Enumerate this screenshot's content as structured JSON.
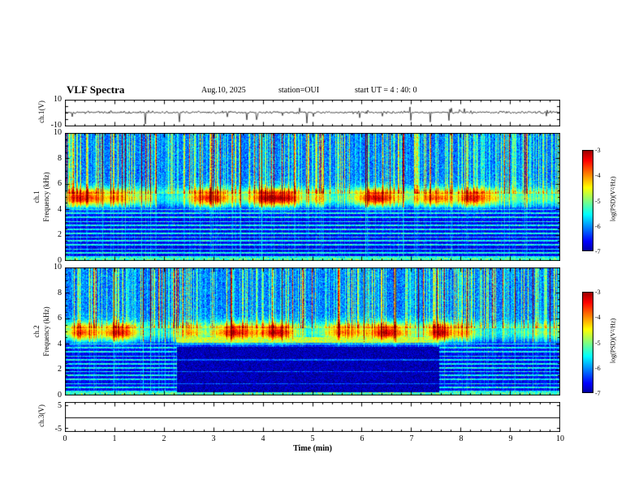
{
  "title": "VLF Spectra",
  "header": {
    "date": "Aug.10, 2025",
    "station": "station=OUI",
    "start_ut": "start UT =  4 : 40: 0"
  },
  "xaxis": {
    "label": "Time (min)",
    "min": 0,
    "max": 10,
    "tick_labels": [
      "0",
      "1",
      "2",
      "3",
      "4",
      "5",
      "6",
      "7",
      "8",
      "9",
      "10"
    ]
  },
  "colorbar": {
    "label": "log(PSD)(V²/Hz)",
    "max": -3,
    "min": -7,
    "tick_labels": [
      "-3",
      "-4",
      "-5",
      "-6",
      "-7"
    ]
  },
  "chart_data": [
    {
      "type": "line",
      "panel": "ch1-waveform",
      "ylabel": "ch.1(V)",
      "ylim": [
        -10,
        10
      ],
      "ytick_labels": [
        "10",
        "-10"
      ],
      "xlim": [
        0,
        10
      ],
      "content": "broadband noise trace near +0.5 V with ~30 impulsive downward spikes reaching -3 to -9 V spread over 10 minutes"
    },
    {
      "type": "heatmap",
      "panel": "ch1-spectrogram",
      "channel": "ch.1",
      "ylabel": "Frequency (kHz)",
      "ylim": [
        0,
        10
      ],
      "ytick_labels": [
        "10",
        "8",
        "6",
        "4",
        "2",
        "0"
      ],
      "xlim": [
        0,
        10
      ],
      "zlabel": "log(PSD)(V²/Hz)",
      "zlim": [
        -7,
        -3
      ],
      "content": "dense vertical sferic streaks strongest above 5 kHz (reaching -3), continuous hiss band near 4.5-5.5 kHz around -5 with brighter green-yellow blobs, dark -7 background below 4 kHz crossed by narrowband horizontal cyan lines, bright line at lowest frequencies"
    },
    {
      "type": "heatmap",
      "panel": "ch2-spectrogram",
      "channel": "ch.2",
      "ylabel": "Frequency (kHz)",
      "ylim": [
        0,
        10
      ],
      "ytick_labels": [
        "10",
        "8",
        "6",
        "4",
        "2",
        "0"
      ],
      "xlim": [
        0,
        10
      ],
      "zlabel": "log(PSD)(V²/Hz)",
      "zlim": [
        -7,
        -3
      ],
      "content": "similar to ch.1 but with very dark quiet region below ~3.9 kHz between ~2.2 and ~7.5 min and a narrow green emission band near 4.4 kHz across that interval"
    },
    {
      "type": "line",
      "panel": "ch3-waveform",
      "ylabel": "ch.3(V)",
      "ylim": [
        -5,
        5
      ],
      "ytick_labels": [
        "5",
        "-5"
      ],
      "xlim": [
        0,
        10
      ],
      "content": "flat line at 0 V"
    }
  ]
}
